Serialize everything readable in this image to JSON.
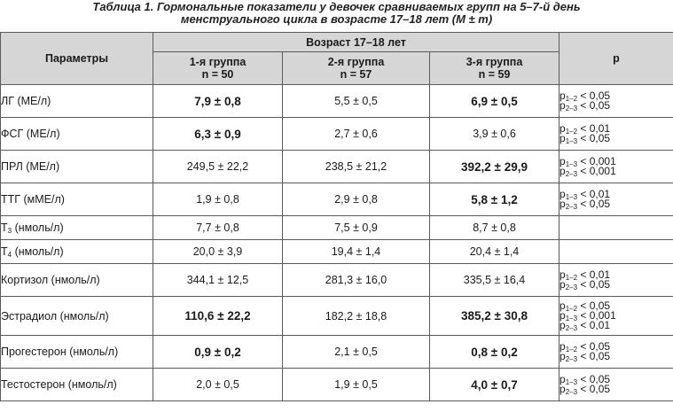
{
  "caption": {
    "line1": "Таблица 1. Гормональные показатели у девочек сравниваемых групп на 5–7-й день",
    "line2": "менструального цикла в возрасте 17–18 лет (M ± m)"
  },
  "header": {
    "params": "Параметры",
    "age": "Возраст 17–18 лет",
    "p": "p",
    "groups": [
      {
        "name": "1-я группа",
        "n": "n = 50"
      },
      {
        "name": "2-я группа",
        "n": "n = 57"
      },
      {
        "name": "3-я группа",
        "n": "n = 59"
      }
    ]
  },
  "rows": [
    {
      "param": "ЛГ (МЕ/л)",
      "values": [
        "7,9 ± 0,8",
        "5,5 ± 0,5",
        "6,9 ± 0,5"
      ],
      "bold": [
        true,
        false,
        true
      ],
      "p": [
        {
          "sub": "1–2",
          "rest": " < 0,05"
        },
        {
          "sub": "2–3",
          "rest": " < 0,05"
        }
      ]
    },
    {
      "param": "ФСГ (МЕ/л)",
      "values": [
        "6,3 ± 0,9",
        "2,7 ± 0,6",
        "3,9 ± 0,6"
      ],
      "bold": [
        true,
        false,
        false
      ],
      "p": [
        {
          "sub": "1–2",
          "rest": " < 0,01"
        },
        {
          "sub": "1–3",
          "rest": " < 0,05"
        }
      ]
    },
    {
      "param": "ПРЛ (МЕ/л)",
      "values": [
        "249,5 ± 22,2",
        "238,5 ± 21,2",
        "392,2 ± 29,9"
      ],
      "bold": [
        false,
        false,
        true
      ],
      "p": [
        {
          "sub": "1–3",
          "rest": " < 0,001"
        },
        {
          "sub": "2–3",
          "rest": " < 0,001"
        }
      ]
    },
    {
      "param": "ТТГ (мМЕ/л)",
      "values": [
        "1,9 ± 0,8",
        "2,9 ± 0,8",
        "5,8 ± 1,2"
      ],
      "bold": [
        false,
        false,
        true
      ],
      "p": [
        {
          "sub": "1–3",
          "rest": " < 0,01"
        },
        {
          "sub": "2–3",
          "rest": " < 0,05"
        }
      ]
    },
    {
      "param_pre": "Т",
      "param_sub": "3",
      "param_post": " (нмоль/л)",
      "values": [
        "7,7 ± 0,8",
        "7,5 ± 0,9",
        "8,7 ± 0,8"
      ],
      "bold": [
        false,
        false,
        false
      ],
      "p": []
    },
    {
      "param_pre": "Т",
      "param_sub": "4",
      "param_post": " (нмоль/л)",
      "values": [
        "20,0 ± 3,9",
        "19,4 ± 1,4",
        "20,4 ± 1,4"
      ],
      "bold": [
        false,
        false,
        false
      ],
      "p": []
    },
    {
      "param": "Кортизол (нмоль/л)",
      "values": [
        "344,1 ± 12,5",
        "281,3 ± 16,0",
        "335,5 ± 16,4"
      ],
      "bold": [
        false,
        false,
        false
      ],
      "p": [
        {
          "sub": "1–2",
          "rest": " < 0,01"
        },
        {
          "sub": "2–3",
          "rest": " < 0,05"
        }
      ]
    },
    {
      "param": "Эстрадиол (нмоль/л)",
      "values": [
        "110,6 ± 22,2",
        "182,2 ± 18,8",
        "385,2 ± 30,8"
      ],
      "bold": [
        true,
        false,
        true
      ],
      "p": [
        {
          "sub": "1–2",
          "rest": " < 0,05"
        },
        {
          "sub": "1–3",
          "rest": " < 0,001"
        },
        {
          "sub": "2–3",
          "rest": " < 0,01"
        }
      ]
    },
    {
      "param": "Прогестерон (нмоль/л)",
      "values": [
        "0,9 ± 0,2",
        "2,1 ± 0,5",
        "0,8 ± 0,2"
      ],
      "bold": [
        true,
        false,
        true
      ],
      "p": [
        {
          "sub": "1–2",
          "rest": " < 0,05"
        },
        {
          "sub": "2–3",
          "rest": " < 0,05"
        }
      ]
    },
    {
      "param": "Тестостерон (нмоль/л)",
      "values": [
        "2,0 ± 0,5",
        "1,9 ± 0,5",
        "4,0 ± 0,7"
      ],
      "bold": [
        false,
        false,
        true
      ],
      "p": [
        {
          "sub": "1–3",
          "rest": " < 0,05"
        },
        {
          "sub": "2–3",
          "rest": " < 0,05"
        }
      ]
    }
  ]
}
